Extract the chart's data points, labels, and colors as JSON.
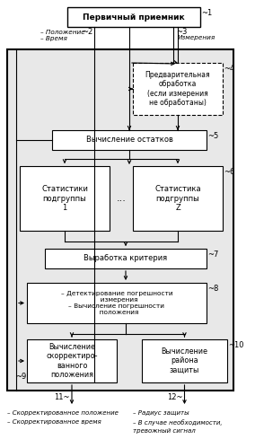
{
  "box1_label": "Первичный приемник",
  "box2_label": "Предварительная\nобработка\n(если измерения\nне обработаны)",
  "box3_label": "Вычисление остатков",
  "box4a_label": "Статистики\nподгруппы\n1",
  "box4b_label": "Статистика\nподгруппы\nZ",
  "box5_label": "Выработка критерия",
  "box6_label": "– Детектирование погрешности\n  измерения\n– Вычисление погрешности\n  положения",
  "box7_label": "Вычисление\nскорректиро-\nванного\nположения",
  "box8_label": "Вычисление\nрайона\nзащиты",
  "dots": "...",
  "lbl_position": "– Положение",
  "lbl_time": "– Время",
  "lbl_measure": "Измерения",
  "lbl_bl1": "– Скорректированное положение",
  "lbl_bl2": "– Скорректированное время",
  "lbl_br1": "– Радиус защиты",
  "lbl_br2": "– В случае необходимости,",
  "lbl_br3": "тревожный сигнал",
  "bg": "#ffffff",
  "box_fc": "#ffffff",
  "box_ec": "#000000",
  "outer_ec": "#000000",
  "outer_fc": "#e8e8e8"
}
